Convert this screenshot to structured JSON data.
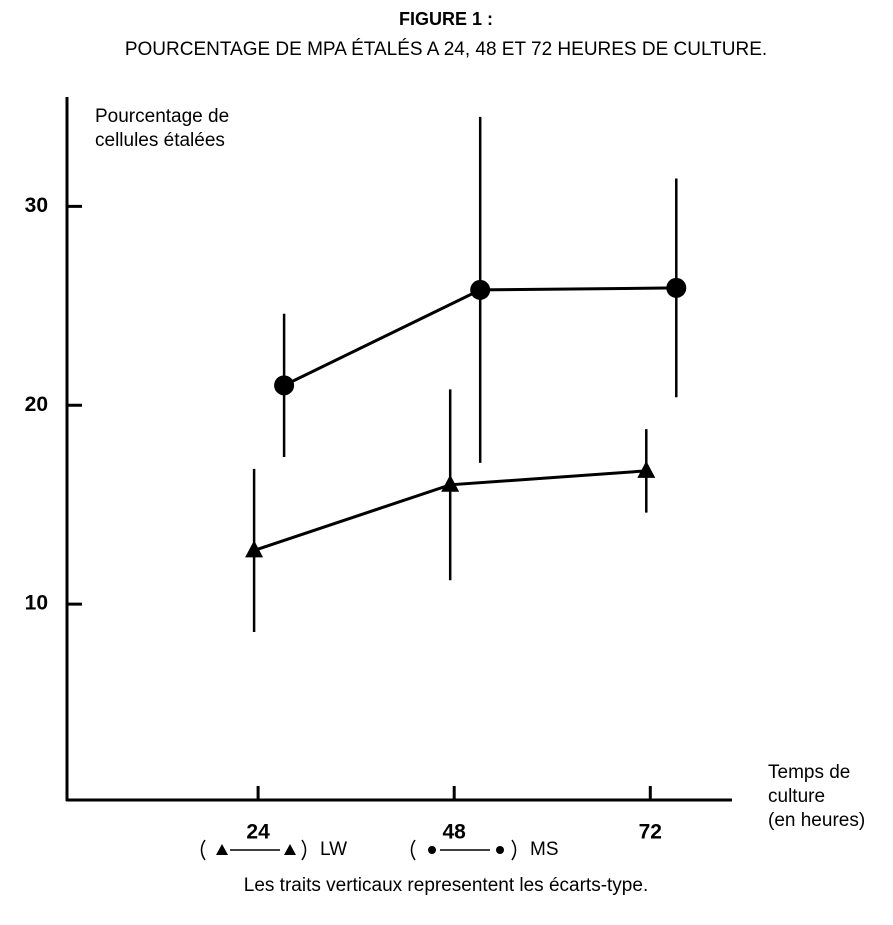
{
  "chart_data": {
    "type": "line",
    "title": "FIGURE 1 :",
    "subtitle": "POURCENTAGE DE MPA ÉTALÉS A 24, 48 ET 72 HEURES DE CULTURE.",
    "y_label": [
      "Pourcentage de",
      "cellules étalées"
    ],
    "x_label": [
      "Temps de",
      "culture",
      "(en heures)"
    ],
    "note": "Les traits verticaux representent les écarts-type.",
    "x": [
      24,
      48,
      72
    ],
    "series": [
      {
        "name": "LW",
        "color": "#000000",
        "marker": "triangle",
        "values": [
          12.7,
          16.0,
          16.7
        ],
        "errors": [
          4.1,
          4.8,
          2.1
        ]
      },
      {
        "name": "MS",
        "color": "#000000",
        "marker": "circle",
        "values": [
          21.0,
          25.8,
          25.9
        ],
        "errors": [
          3.6,
          8.7,
          5.5
        ]
      }
    ],
    "xlim": [
      0,
      82
    ],
    "xticks": [
      24,
      48,
      72
    ],
    "ylim": [
      0,
      35.5
    ],
    "yticks": [
      10,
      20,
      30
    ],
    "grid": false
  }
}
